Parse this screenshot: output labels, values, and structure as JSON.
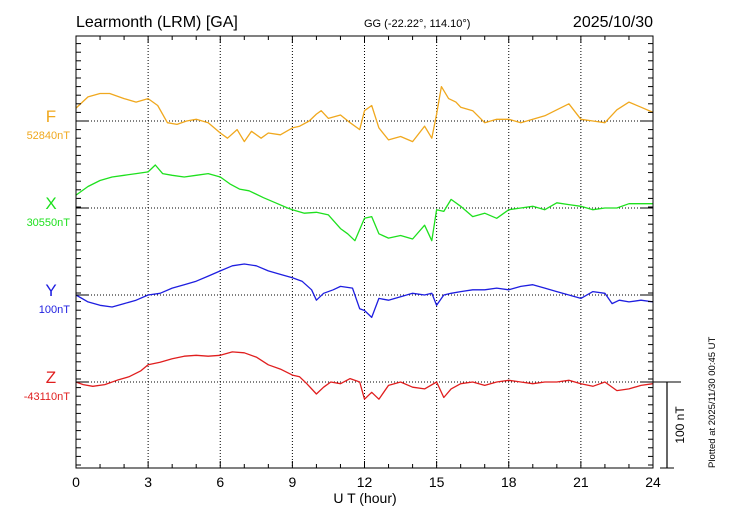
{
  "header": {
    "station": "Learmonth (LRM)  [GA]",
    "coords": "GG (-22.22°, 114.10°)",
    "date": "2025/10/30"
  },
  "footer_note": "Plotted at 2025/11/30 00:45 UT",
  "chart_data": {
    "type": "line",
    "xlabel": "U T (hour)",
    "xlim": [
      0,
      24
    ],
    "xticks": [
      "0",
      "3",
      "6",
      "9",
      "12",
      "15",
      "18",
      "21",
      "24"
    ],
    "grid": true,
    "scale_bar": {
      "label": "100 nT",
      "value": 100,
      "unit": "nT"
    },
    "series": [
      {
        "name": "F",
        "baseline_label": "52840nT",
        "color": "#f0a81e",
        "x": [
          0,
          0.5,
          1,
          1.4,
          2,
          2.5,
          3,
          3.4,
          3.8,
          4.2,
          4.6,
          5,
          5.5,
          6,
          6.3,
          6.7,
          7,
          7.3,
          7.7,
          8,
          8.5,
          9,
          9.3,
          9.7,
          10,
          10.2,
          10.5,
          11,
          11.4,
          11.8,
          12,
          12.3,
          12.6,
          13,
          13.5,
          14,
          14.5,
          14.8,
          15,
          15.2,
          15.5,
          15.8,
          16,
          16.5,
          17,
          17.5,
          18,
          18.5,
          19,
          19.5,
          20,
          20.5,
          21,
          21.5,
          22,
          22.5,
          23,
          23.5,
          24
        ],
        "values": [
          52855,
          52868,
          52872,
          52872,
          52866,
          52862,
          52866,
          52858,
          52838,
          52836,
          52840,
          52842,
          52838,
          52826,
          52820,
          52830,
          52816,
          52828,
          52820,
          52826,
          52824,
          52832,
          52834,
          52840,
          52848,
          52852,
          52843,
          52847,
          52838,
          52830,
          52852,
          52858,
          52832,
          52818,
          52822,
          52816,
          52834,
          52820,
          52848,
          52880,
          52866,
          52862,
          52856,
          52852,
          52838,
          52842,
          52842,
          52838,
          52842,
          52846,
          52853,
          52860,
          52842,
          52840,
          52838,
          52853,
          52862,
          52856,
          52850
        ]
      },
      {
        "name": "X",
        "baseline_label": "30550nT",
        "color": "#1ee01e",
        "x": [
          0,
          0.5,
          1,
          1.5,
          2,
          2.5,
          3,
          3.3,
          3.6,
          4,
          4.5,
          5,
          5.5,
          6,
          6.4,
          6.8,
          7.2,
          7.8,
          8.3,
          8.8,
          9,
          9.5,
          10,
          10.5,
          11,
          11.3,
          11.6,
          12,
          12.3,
          12.6,
          13,
          13.5,
          14,
          14.5,
          14.8,
          15,
          15.3,
          15.6,
          16,
          16.5,
          17,
          17.5,
          18,
          18.5,
          19,
          19.5,
          20,
          20.5,
          21,
          21.5,
          22,
          22.5,
          23,
          23.5,
          24
        ],
        "values": [
          30565,
          30575,
          30582,
          30586,
          30588,
          30590,
          30592,
          30600,
          30590,
          30588,
          30586,
          30588,
          30590,
          30586,
          30578,
          30572,
          30570,
          30562,
          30556,
          30550,
          30548,
          30544,
          30545,
          30542,
          30526,
          30520,
          30512,
          30538,
          30540,
          30520,
          30515,
          30518,
          30514,
          30530,
          30512,
          30548,
          30546,
          30560,
          30552,
          30540,
          30544,
          30538,
          30548,
          30550,
          30552,
          30548,
          30556,
          30554,
          30552,
          30548,
          30550,
          30550,
          30555,
          30555,
          30555
        ]
      },
      {
        "name": "Y",
        "baseline_label": "100nT",
        "color": "#1e1ee0",
        "x": [
          0,
          0.5,
          1,
          1.5,
          2,
          2.5,
          3,
          3.5,
          4,
          4.5,
          5,
          5.5,
          6,
          6.5,
          7,
          7.5,
          8,
          8.5,
          9,
          9.4,
          9.8,
          10,
          10.3,
          10.7,
          11,
          11.5,
          11.8,
          12,
          12.3,
          12.6,
          13,
          13.5,
          14,
          14.5,
          14.8,
          15,
          15.3,
          15.6,
          16,
          16.5,
          17,
          17.5,
          18,
          18.5,
          19,
          19.5,
          20,
          20.5,
          21,
          21.5,
          22,
          22.3,
          22.6,
          23,
          23.5,
          24
        ],
        "values": [
          100,
          92,
          88,
          86,
          90,
          94,
          100,
          102,
          108,
          112,
          116,
          122,
          128,
          134,
          136,
          134,
          128,
          124,
          120,
          116,
          106,
          94,
          102,
          106,
          110,
          108,
          84,
          82,
          74,
          96,
          94,
          98,
          102,
          100,
          102,
          88,
          100,
          102,
          104,
          106,
          106,
          108,
          106,
          110,
          112,
          108,
          104,
          100,
          96,
          104,
          102,
          90,
          94,
          92,
          94,
          92
        ]
      },
      {
        "name": "Z",
        "baseline_label": "-43110nT",
        "color": "#e01e1e",
        "x": [
          0,
          0.3,
          0.7,
          1.2,
          1.7,
          2.2,
          2.7,
          3,
          3.5,
          4,
          4.5,
          5,
          5.5,
          6,
          6.5,
          7,
          7.5,
          8,
          8.5,
          9,
          9.3,
          9.6,
          10,
          10.3,
          10.6,
          11,
          11.4,
          11.8,
          12,
          12.3,
          12.6,
          13,
          13.5,
          14,
          14.5,
          15,
          15.3,
          15.6,
          16,
          16.5,
          17,
          17.5,
          18,
          18.5,
          19,
          19.5,
          20,
          20.5,
          21,
          21.5,
          22,
          22.5,
          23,
          23.5,
          24
        ],
        "values": [
          -43110,
          -43113,
          -43115,
          -43113,
          -43108,
          -43104,
          -43097,
          -43090,
          -43087,
          -43083,
          -43080,
          -43079,
          -43080,
          -43079,
          -43075,
          -43076,
          -43081,
          -43090,
          -43095,
          -43102,
          -43104,
          -43112,
          -43124,
          -43116,
          -43110,
          -43112,
          -43106,
          -43110,
          -43130,
          -43122,
          -43130,
          -43114,
          -43110,
          -43116,
          -43118,
          -43110,
          -43128,
          -43118,
          -43112,
          -43110,
          -43114,
          -43110,
          -43108,
          -43110,
          -43112,
          -43110,
          -43110,
          -43108,
          -43112,
          -43115,
          -43110,
          -43120,
          -43118,
          -43114,
          -43112
        ]
      }
    ]
  }
}
